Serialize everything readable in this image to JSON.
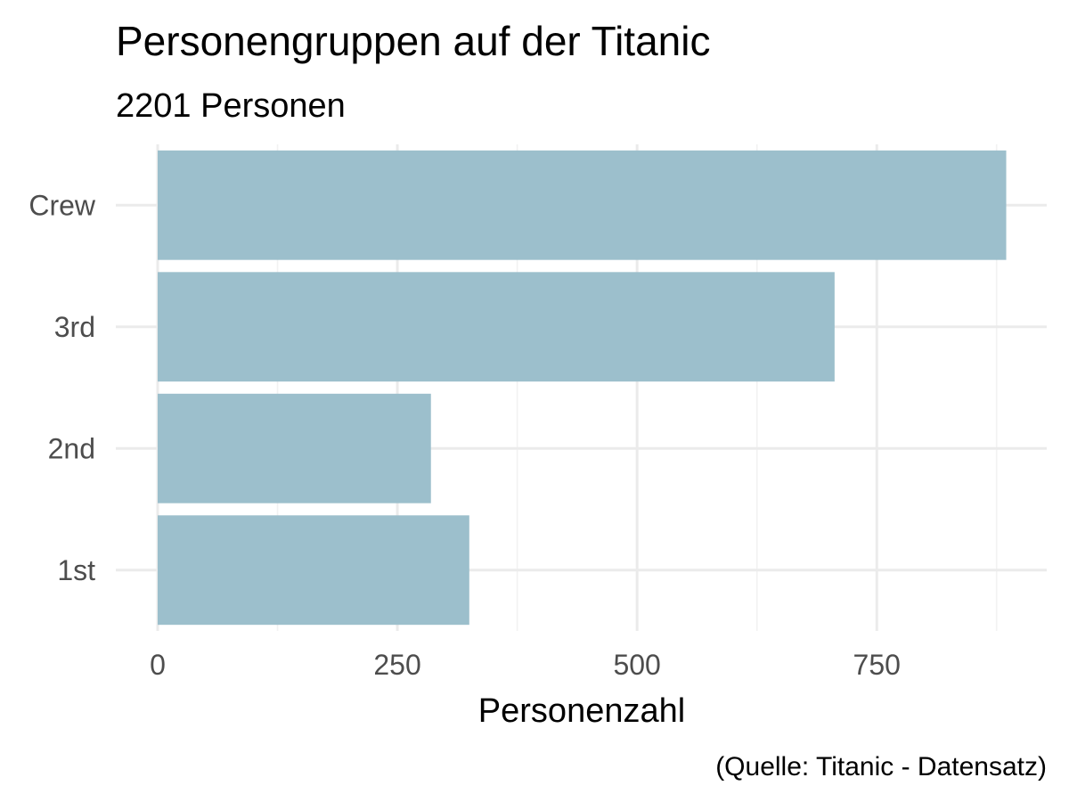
{
  "chart_data": {
    "type": "bar",
    "orientation": "horizontal",
    "title": "Personengruppen auf der Titanic",
    "subtitle": "2201 Personen",
    "caption": "(Quelle: Titanic - Datensatz)",
    "xlabel": "Personenzahl",
    "ylabel": "",
    "categories": [
      "1st",
      "2nd",
      "3rd",
      "Crew"
    ],
    "values": [
      325,
      285,
      706,
      885
    ],
    "xlim": [
      0,
      885
    ],
    "x_ticks": [
      0,
      250,
      500,
      750
    ],
    "x_tick_labels": [
      "0",
      "250",
      "500",
      "750"
    ],
    "grid": true,
    "legend": "none",
    "bar_color": "#9cbfcc"
  }
}
